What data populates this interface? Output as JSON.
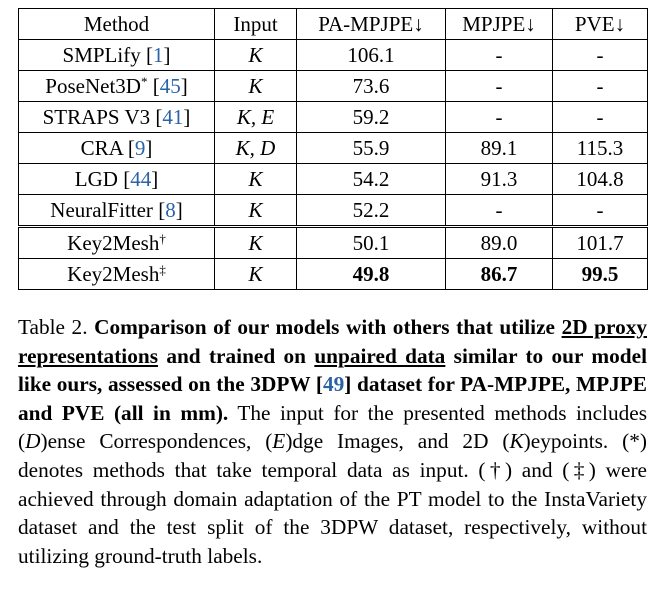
{
  "table": {
    "headers": [
      "Method",
      "Input",
      "PA-MPJPE↓",
      "MPJPE↓",
      "PVE↓"
    ],
    "rows": [
      {
        "method": "SMPLify",
        "sup": "",
        "cite": "1",
        "input": "K",
        "pa_mpjpe": "106.1",
        "mpjpe": "-",
        "pve": "-"
      },
      {
        "method": "PoseNet3D",
        "sup": "*",
        "cite": "45",
        "input": "K",
        "pa_mpjpe": "73.6",
        "mpjpe": "-",
        "pve": "-"
      },
      {
        "method": "STRAPS V3",
        "sup": "",
        "cite": "41",
        "input": "K, E",
        "pa_mpjpe": "59.2",
        "mpjpe": "-",
        "pve": "-"
      },
      {
        "method": "CRA",
        "sup": "",
        "cite": "9",
        "input": "K, D",
        "pa_mpjpe": "55.9",
        "mpjpe": "89.1",
        "pve": "115.3"
      },
      {
        "method": "LGD",
        "sup": "",
        "cite": "44",
        "input": "K",
        "pa_mpjpe": "54.2",
        "mpjpe": "91.3",
        "pve": "104.8"
      },
      {
        "method": "NeuralFitter",
        "sup": "",
        "cite": "8",
        "input": "K",
        "pa_mpjpe": "52.2",
        "mpjpe": "-",
        "pve": "-"
      },
      {
        "method": "Key2Mesh",
        "sup": "†",
        "cite": "",
        "input": "K",
        "pa_mpjpe": "50.1",
        "mpjpe": "89.0",
        "pve": "101.7"
      },
      {
        "method": "Key2Mesh",
        "sup": "‡",
        "cite": "",
        "input": "K",
        "pa_mpjpe": "49.8",
        "mpjpe": "86.7",
        "pve": "99.5"
      }
    ]
  },
  "caption": {
    "label": "Table 2.",
    "bold_1": "Comparison of our models with others that utilize",
    "bold_ul_1": "2D proxy representations",
    "bold_2": "and trained on",
    "bold_ul_2": "unpaired data",
    "bold_3": "similar to our model like ours, assessed on the 3DPW [",
    "bold_cite": "49",
    "bold_4": "] dataset for PA-MPJPE, MPJPE and PVE (all in mm).",
    "text_1": "The input for the presented methods includes (",
    "d_letter": "D",
    "text_2": ")ense Correspondences, (",
    "e_letter": "E",
    "text_3": ")dge Images, and 2D (",
    "k_letter": "K",
    "text_4": ")eypoints. (*) denotes methods that take temporal data as input. (†) and (‡) were achieved through domain adaptation of the PT model to the InstaVariety dataset and the test split of the 3DPW dataset, respectively, without utilizing ground-truth labels."
  }
}
